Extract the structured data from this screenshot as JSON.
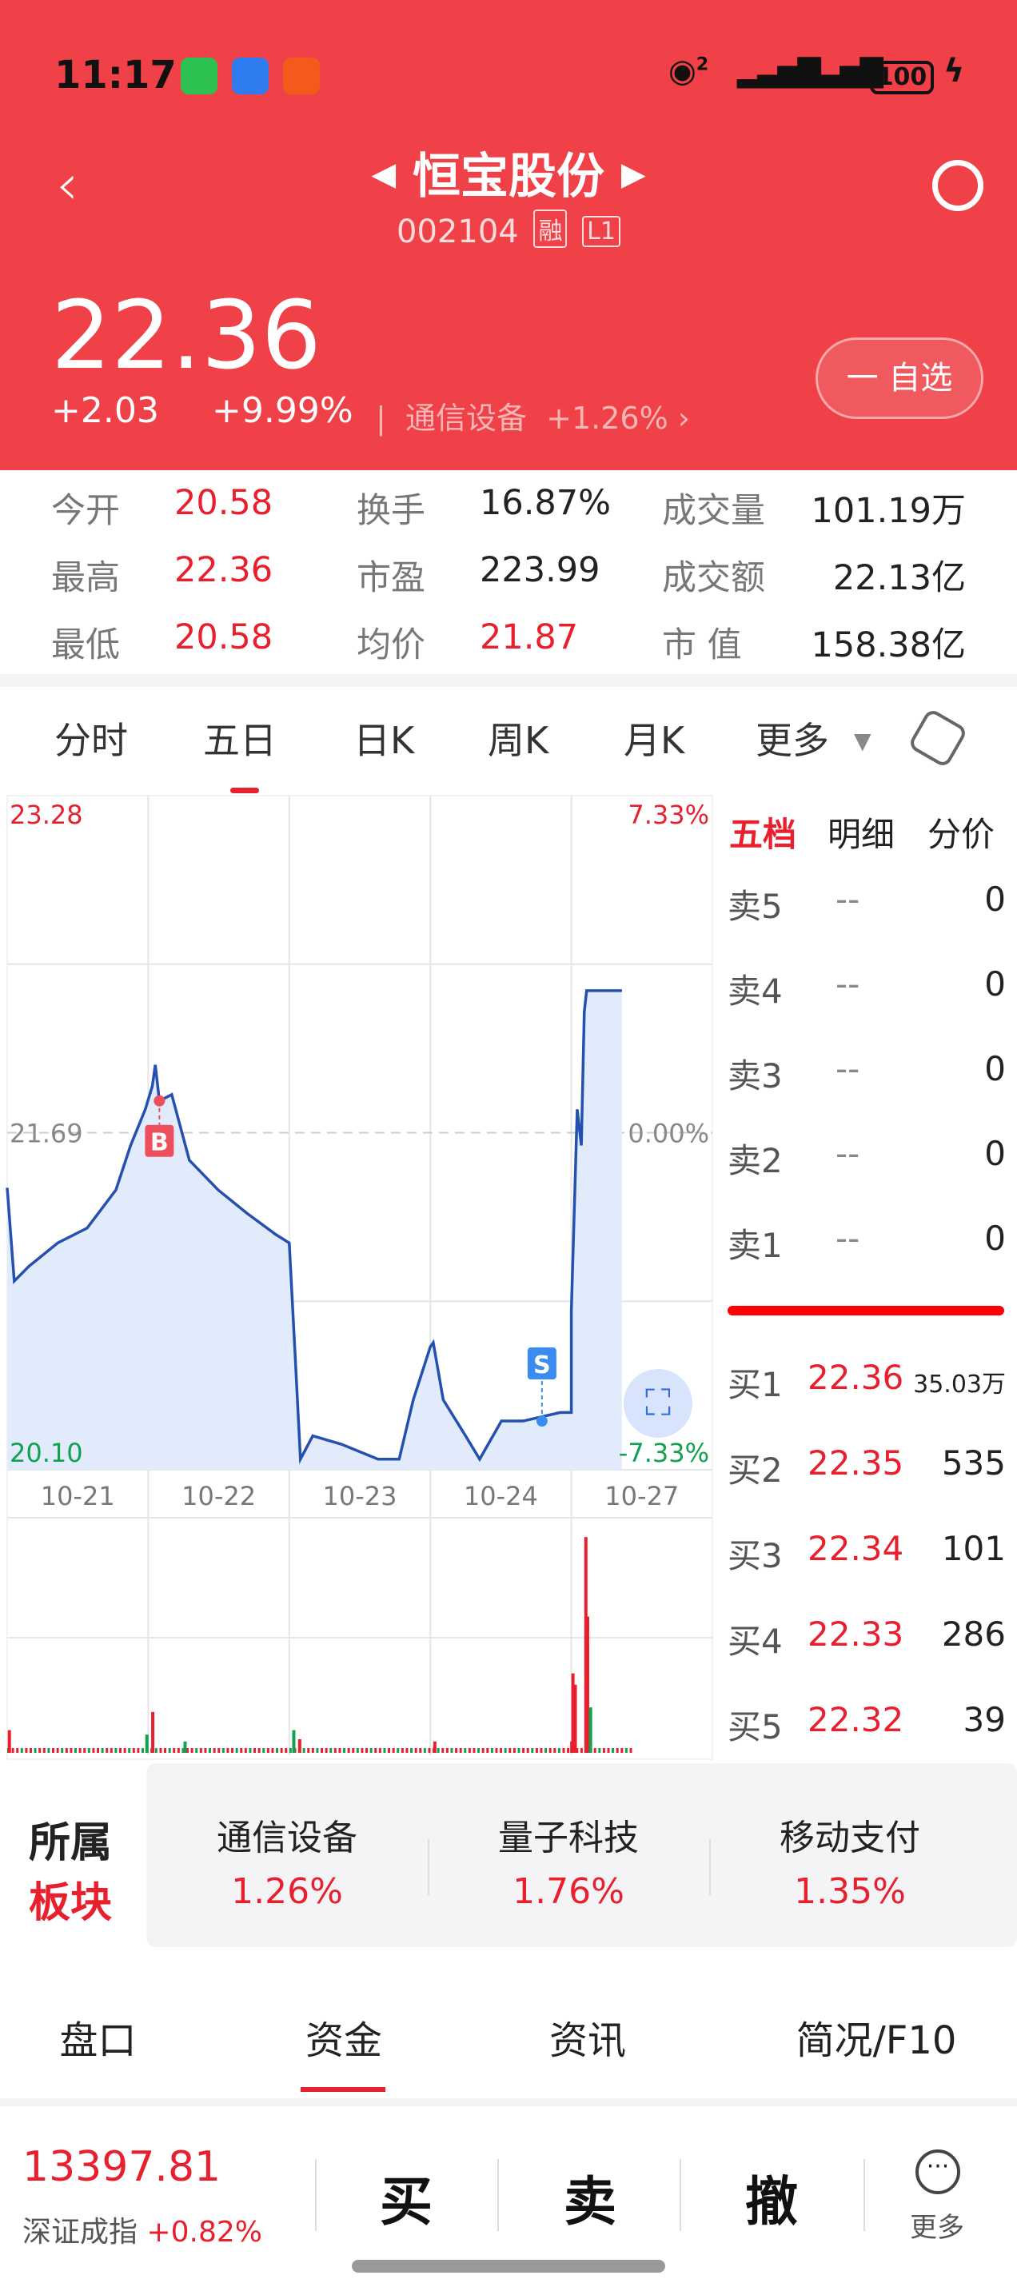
{
  "status_bar": {
    "time": "11:17",
    "battery": "100",
    "hotspot_badge": "2"
  },
  "header": {
    "title": "恒宝股份",
    "code": "002104",
    "tags": [
      "融",
      "L1"
    ],
    "price": "22.36",
    "change": "+2.03",
    "change_pct": "+9.99%",
    "sector": "通信设备",
    "sector_pct": "+1.26%",
    "watchlist_button": "自选",
    "watchlist_symbol": "一"
  },
  "stats": [
    [
      {
        "label": "今开",
        "value": "20.58",
        "color": "red"
      },
      {
        "label": "换手",
        "value": "16.87%",
        "color": "dark"
      },
      {
        "label": "成交量",
        "value": "101.19万",
        "color": "dark"
      }
    ],
    [
      {
        "label": "最高",
        "value": "22.36",
        "color": "red"
      },
      {
        "label": "市盈",
        "value": "223.99",
        "color": "dark"
      },
      {
        "label": "成交额",
        "value": "22.13亿",
        "color": "dark"
      }
    ],
    [
      {
        "label": "最低",
        "value": "20.58",
        "color": "red"
      },
      {
        "label": "均价",
        "value": "21.87",
        "color": "red"
      },
      {
        "label": "市 值",
        "value": "158.38亿",
        "color": "dark"
      }
    ]
  ],
  "chart_tabs": [
    "分时",
    "五日",
    "日K",
    "周K",
    "月K",
    "更多"
  ],
  "active_chart_tab": "五日",
  "chart_data": {
    "type": "line",
    "ylim": [
      20.1,
      23.28
    ],
    "base_price": 21.69,
    "y_labels": {
      "top": "23.28",
      "mid": "21.69",
      "bottom": "20.10",
      "top_pct": "7.33%",
      "mid_pct": "0.00%",
      "bottom_pct": "-7.33%"
    },
    "categories": [
      "10-21",
      "10-22",
      "10-23",
      "10-24",
      "10-27"
    ],
    "series": [
      {
        "date": "10-21",
        "points": [
          [
            "09:30",
            21.43
          ],
          [
            "09:42",
            20.99
          ],
          [
            "10:07",
            21.06
          ],
          [
            "10:56",
            21.17
          ],
          [
            "13:16",
            21.24
          ],
          [
            "14:05",
            21.42
          ],
          [
            "14:30",
            21.63
          ],
          [
            "14:55",
            21.8
          ]
        ]
      },
      {
        "date": "10-22",
        "points": [
          [
            "09:37",
            21.91
          ],
          [
            "09:42",
            22.01
          ],
          [
            "09:49",
            21.84
          ],
          [
            "10:10",
            21.87
          ],
          [
            "10:40",
            21.56
          ],
          [
            "11:29",
            21.42
          ],
          [
            "13:48",
            21.31
          ],
          [
            "14:37",
            21.21
          ],
          [
            "15:00",
            21.17
          ]
        ]
      },
      {
        "date": "10-23",
        "points": [
          [
            "09:40",
            20.64
          ],
          [
            "09:49",
            20.15
          ],
          [
            "10:10",
            20.26
          ],
          [
            "10:59",
            20.22
          ],
          [
            "13:31",
            20.15
          ],
          [
            "14:07",
            20.15
          ],
          [
            "14:31",
            20.43
          ],
          [
            "15:00",
            20.68
          ]
        ]
      },
      {
        "date": "10-24",
        "points": [
          [
            "09:35",
            20.7
          ],
          [
            "09:52",
            20.43
          ],
          [
            "10:30",
            20.26
          ],
          [
            "10:54",
            20.15
          ],
          [
            "13:01",
            20.33
          ],
          [
            "13:38",
            20.33
          ],
          [
            "14:41",
            20.37
          ],
          [
            "15:00",
            20.37
          ]
        ]
      },
      {
        "date": "10-27",
        "points": [
          [
            "09:30",
            20.85
          ],
          [
            "09:40",
            21.8
          ],
          [
            "09:47",
            21.63
          ],
          [
            "09:52",
            22.26
          ],
          [
            "09:56",
            22.36
          ],
          [
            "10:56",
            22.36
          ]
        ]
      }
    ],
    "markers": [
      {
        "label": "B",
        "date": "10-22",
        "time": "09:49",
        "price": 21.84,
        "color": "#ef4f5c"
      },
      {
        "label": "S",
        "date": "10-24",
        "time": "14:10",
        "price": 20.33,
        "color": "#3a8cf0"
      }
    ],
    "volume_levels": [
      {
        "date": "10-21",
        "time": "09:31",
        "level": 0.1,
        "color": "red"
      },
      {
        "date": "10-21",
        "time": "14:55",
        "level": 0.08,
        "color": "green"
      },
      {
        "date": "10-22",
        "time": "09:35",
        "level": 0.18,
        "color": "red"
      },
      {
        "date": "10-22",
        "time": "10:30",
        "level": 0.05,
        "color": "green"
      },
      {
        "date": "10-23",
        "time": "09:35",
        "level": 0.1,
        "color": "green"
      },
      {
        "date": "10-23",
        "time": "09:45",
        "level": 0.06,
        "color": "red"
      },
      {
        "date": "10-24",
        "time": "09:35",
        "level": 0.05,
        "color": "red"
      },
      {
        "date": "10-24",
        "time": "14:58",
        "level": 0.05,
        "color": "red"
      },
      {
        "date": "10-27",
        "time": "09:30",
        "level": 0.35,
        "color": "red"
      },
      {
        "date": "10-27",
        "time": "09:34",
        "level": 0.3,
        "color": "red"
      },
      {
        "date": "10-27",
        "time": "09:52",
        "level": 0.95,
        "color": "red"
      },
      {
        "date": "10-27",
        "time": "09:55",
        "level": 0.6,
        "color": "red"
      },
      {
        "date": "10-27",
        "time": "10:00",
        "level": 0.2,
        "color": "green"
      }
    ]
  },
  "order_book": {
    "tabs": [
      "五档",
      "明细",
      "分价"
    ],
    "asks": [
      {
        "label": "卖5",
        "price": "--",
        "vol": "0"
      },
      {
        "label": "卖4",
        "price": "--",
        "vol": "0"
      },
      {
        "label": "卖3",
        "price": "--",
        "vol": "0"
      },
      {
        "label": "卖2",
        "price": "--",
        "vol": "0"
      },
      {
        "label": "卖1",
        "price": "--",
        "vol": "0"
      }
    ],
    "bids": [
      {
        "label": "买1",
        "price": "22.36",
        "vol": "35.03万"
      },
      {
        "label": "买2",
        "price": "22.35",
        "vol": "535"
      },
      {
        "label": "买3",
        "price": "22.34",
        "vol": "101"
      },
      {
        "label": "买4",
        "price": "22.33",
        "vol": "286"
      },
      {
        "label": "买5",
        "price": "22.32",
        "vol": "39"
      }
    ]
  },
  "sectors": {
    "title_top": "所属",
    "title_bottom": "板块",
    "items": [
      {
        "name": "通信设备",
        "pct": "1.26%"
      },
      {
        "name": "量子科技",
        "pct": "1.76%"
      },
      {
        "name": "移动支付",
        "pct": "1.35%"
      }
    ]
  },
  "bottom_tabs": [
    "盘口",
    "资金",
    "资讯",
    "简况/F10"
  ],
  "active_bottom_tab": "资金",
  "bottom_bar": {
    "index_value": "13397.81",
    "index_name": "深证成指",
    "index_pct": "+0.82%",
    "buy": "买",
    "sell": "卖",
    "cancel": "撤",
    "more": "更多"
  },
  "colors": {
    "header_red": "#ef4147",
    "up_red": "#e8202e",
    "down_green": "#12a150",
    "line_blue": "#2450b0",
    "fill_blue": "#e2ebfc"
  }
}
